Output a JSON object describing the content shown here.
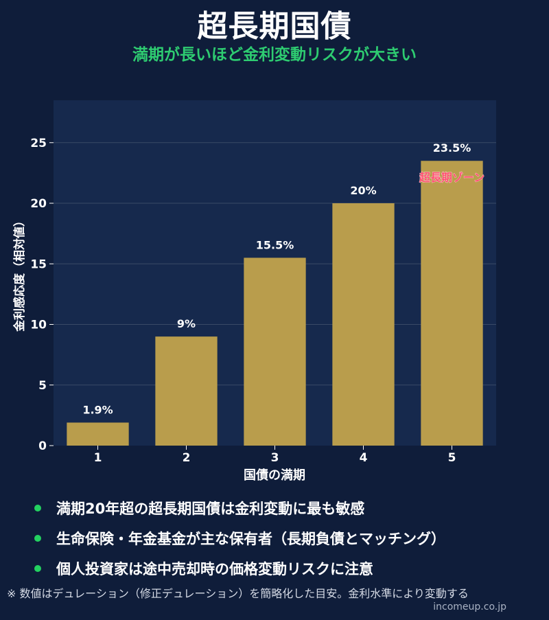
{
  "header": {
    "title": "超長期国債",
    "subtitle": "満期が長いほど金利変動リスクが大きい"
  },
  "chart_data": {
    "type": "bar",
    "categories": [
      "1",
      "2",
      "3",
      "4",
      "5"
    ],
    "values": [
      1.9,
      9,
      15.5,
      20,
      23.5
    ],
    "value_labels": [
      "1.9%",
      "9%",
      "15.5%",
      "20%",
      "23.5%"
    ],
    "xlabel": "国債の満期",
    "ylabel": "金利感応度（相対値）",
    "ylim": [
      0,
      28.5
    ],
    "yticks": [
      0,
      5,
      10,
      15,
      20,
      25
    ],
    "grid": true,
    "annotation": {
      "category": "5",
      "text": "超長期ゾーン",
      "color": "#ff4d6d"
    },
    "colors": {
      "bar": "#b99d4c",
      "plot_bg": "#16294d",
      "grid": "#3a4a66"
    }
  },
  "bullets": [
    "満期20年超の超長期国債は金利変動に最も敏感",
    "生命保険・年金基金が主な保有者（長期負債とマッチング）",
    "個人投資家は途中売却時の価格変動リスクに注意"
  ],
  "footer": {
    "note": "※ 数値はデュレーション（修正デュレーション）を簡略化した目安。金利水準により変動する",
    "credit": "incomeup.co.jp"
  }
}
